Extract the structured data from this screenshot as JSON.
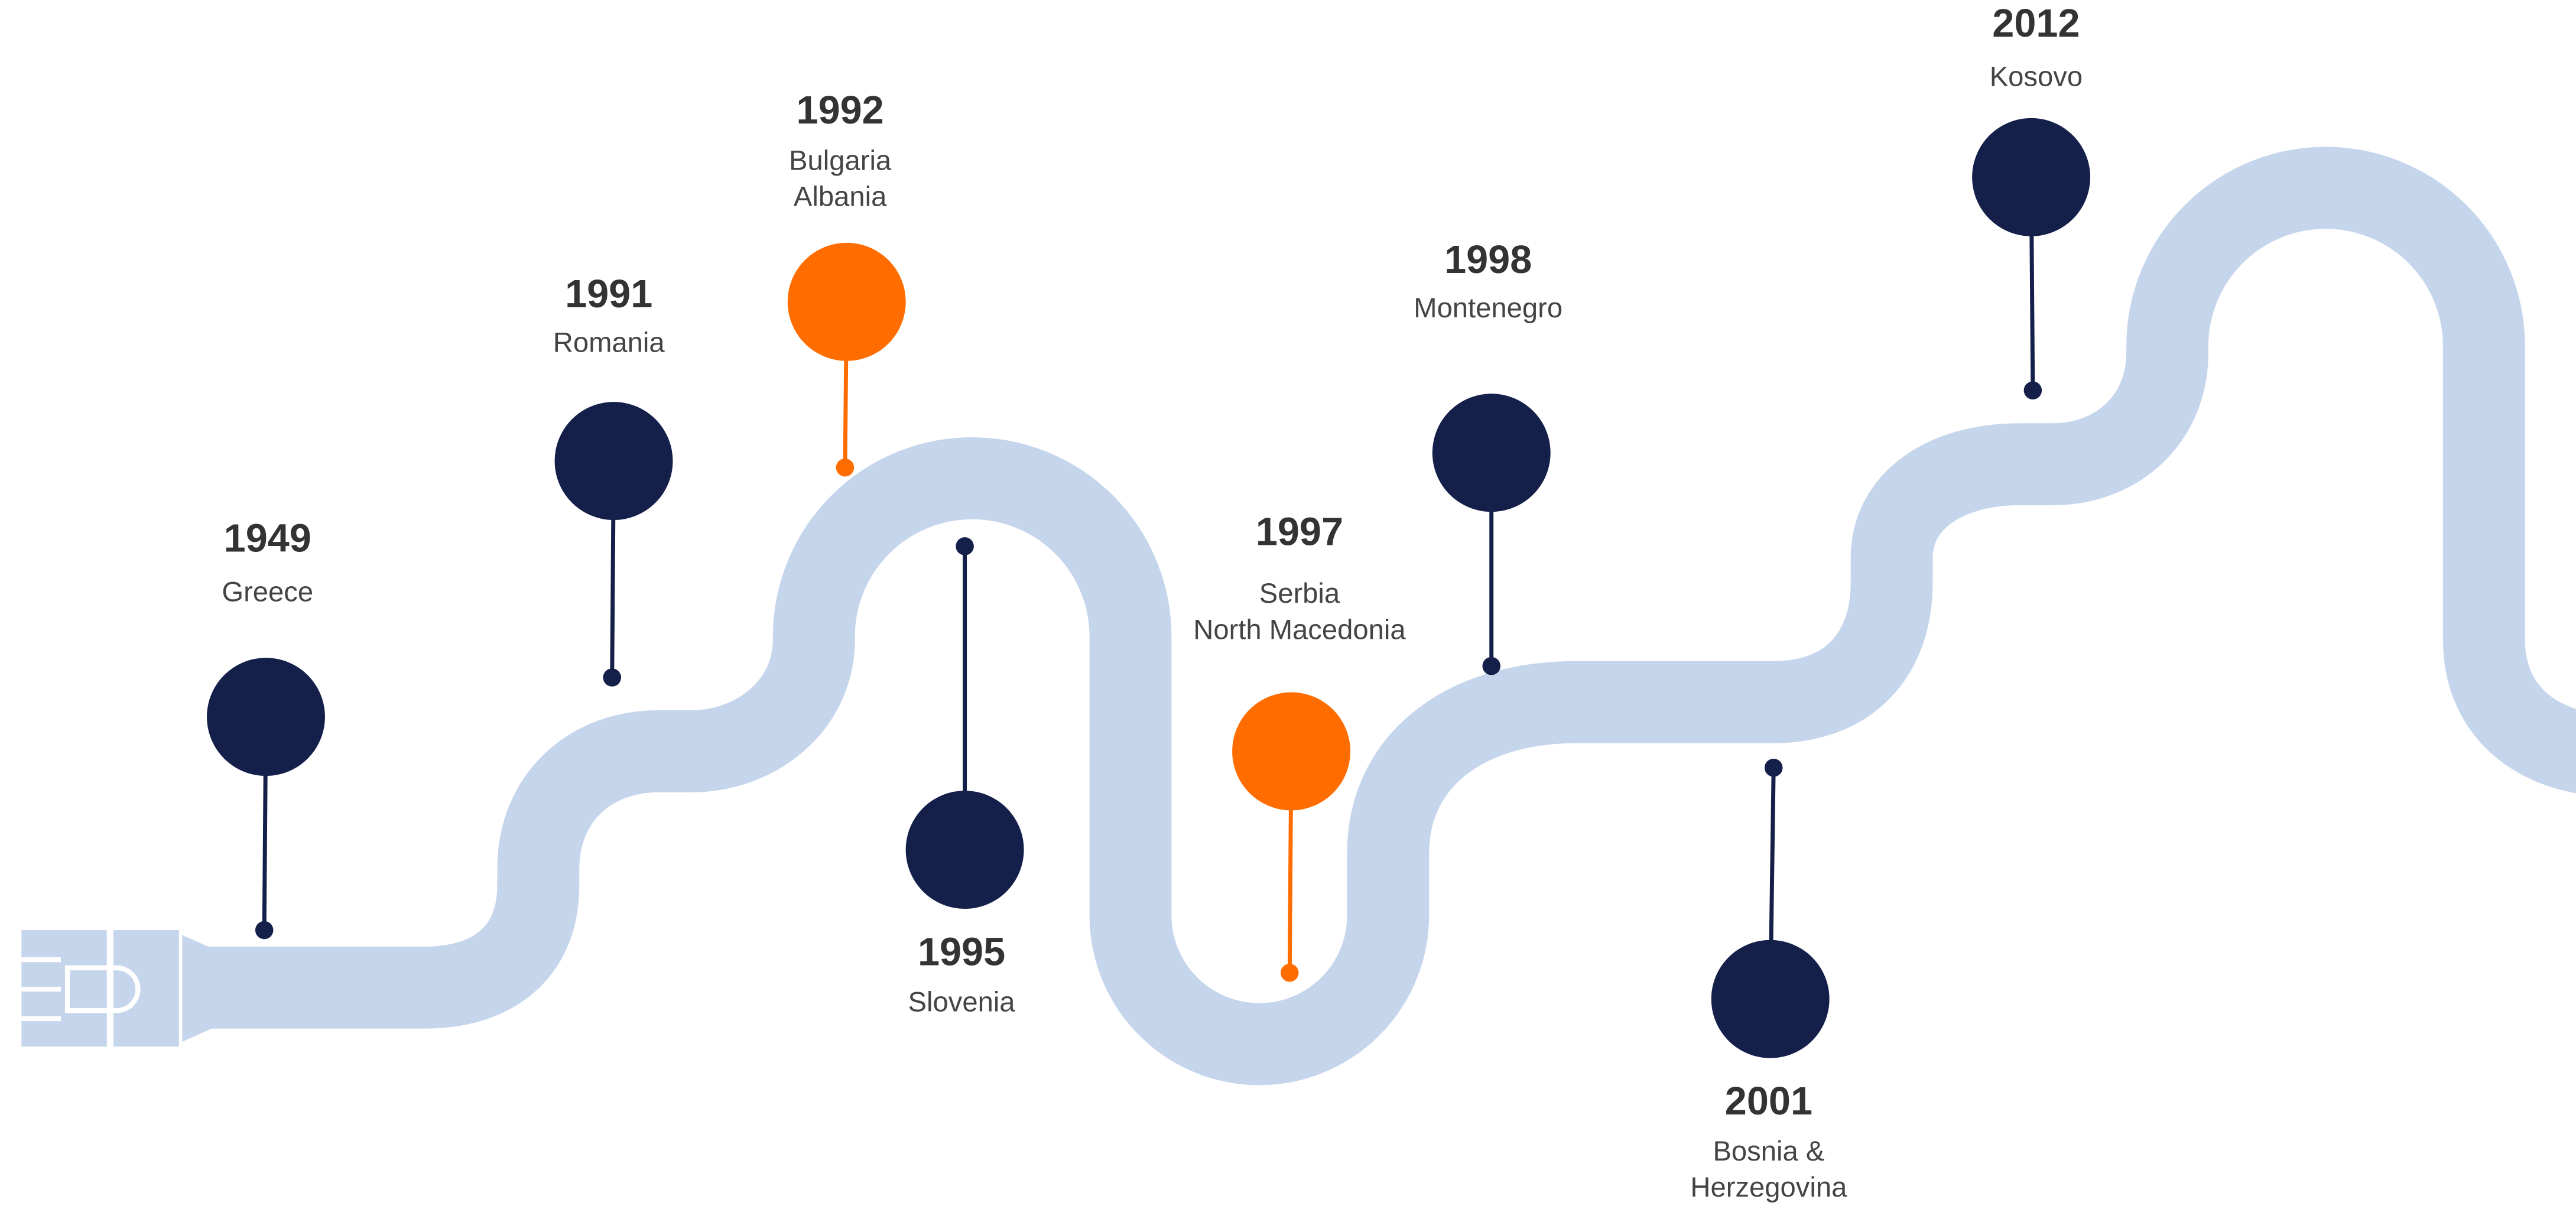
{
  "events": [
    {
      "year": "1949",
      "lines": [
        "Greece"
      ],
      "color": "#141f4a"
    },
    {
      "year": "1991",
      "lines": [
        "Romania"
      ],
      "color": "#141f4a"
    },
    {
      "year": "1992",
      "lines": [
        "Bulgaria",
        "Albania"
      ],
      "color": "#ff6d00"
    },
    {
      "year": "1995",
      "lines": [
        "Slovenia"
      ],
      "color": "#141f4a"
    },
    {
      "year": "1997",
      "lines": [
        "Serbia",
        "North Macedonia"
      ],
      "color": "#ff6d00"
    },
    {
      "year": "1998",
      "lines": [
        "Montenegro"
      ],
      "color": "#141f4a"
    },
    {
      "year": "2001",
      "lines": [
        "Bosnia &",
        "Herzegovina"
      ],
      "color": "#141f4a"
    },
    {
      "year": "2012",
      "lines": [
        "Kosovo"
      ],
      "color": "#141f4a"
    }
  ]
}
